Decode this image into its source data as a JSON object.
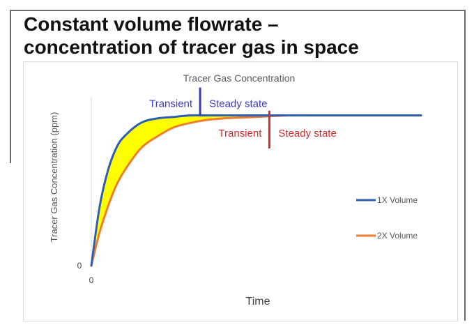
{
  "slide": {
    "title_line1": "Constant volume flowrate –",
    "title_line2": "concentration of tracer gas in space"
  },
  "chart_data": {
    "type": "line",
    "title": "Tracer Gas Concentration",
    "xlabel": "Time",
    "ylabel": "Tracer Gas Concentration (ppm)",
    "x_tick_labels": [
      "0"
    ],
    "y_tick_labels": [
      "0"
    ],
    "xlim": [
      0,
      10
    ],
    "ylim": [
      0,
      1.1
    ],
    "grid": false,
    "legend_position": "right",
    "series": [
      {
        "name": "1X Volume",
        "color": "#2e5fae",
        "x": [
          0,
          0.25,
          0.5,
          0.75,
          1,
          1.5,
          2,
          2.5,
          3,
          3.5,
          4,
          5,
          6,
          7,
          8,
          9,
          10
        ],
        "y": [
          0,
          0.39,
          0.63,
          0.78,
          0.86,
          0.95,
          0.98,
          0.99,
          1,
          1,
          1,
          1,
          1,
          1,
          1,
          1,
          1
        ]
      },
      {
        "name": "2X Volume",
        "color": "#ed7d31",
        "x": [
          0,
          0.25,
          0.5,
          0.75,
          1,
          1.5,
          2,
          2.5,
          3,
          3.5,
          4,
          5,
          6,
          7,
          8,
          9,
          10
        ],
        "y": [
          0,
          0.22,
          0.39,
          0.53,
          0.63,
          0.78,
          0.86,
          0.92,
          0.95,
          0.97,
          0.98,
          0.99,
          1,
          1,
          1,
          1,
          1
        ]
      }
    ],
    "shaded_region": {
      "between": [
        "1X Volume",
        "2X Volume"
      ],
      "color": "#ffff00"
    },
    "annotations": [
      {
        "series": "1X Volume",
        "x": 3.3,
        "left_text": "Transient",
        "right_text": "Steady state",
        "color": "#3b3bbd"
      },
      {
        "series": "2X Volume",
        "x": 5.4,
        "left_text": "Transient",
        "right_text": "Steady state",
        "color": "#d42a2a"
      }
    ]
  }
}
